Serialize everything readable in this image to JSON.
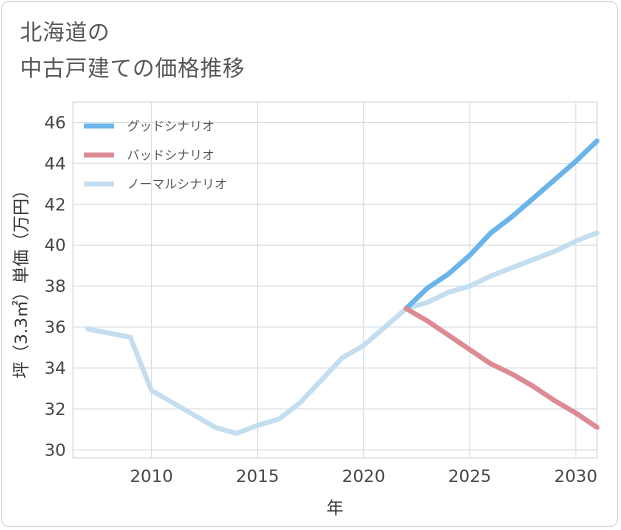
{
  "title_lines": [
    "北海道の",
    "中古戸建ての価格推移"
  ],
  "chart_data": {
    "type": "line",
    "xlabel": "年",
    "ylabel": "坪（3.3㎡）単価（万円）",
    "xlim": [
      2006.3,
      2031
    ],
    "ylim": [
      29.6,
      47
    ],
    "x_ticks": [
      2010,
      2015,
      2020,
      2025,
      2030
    ],
    "y_ticks": [
      30,
      32,
      34,
      36,
      38,
      40,
      42,
      44,
      46
    ],
    "grid": true,
    "legend_position": "top-left",
    "series": [
      {
        "name": "グッドシナリオ",
        "color": "#6ab4ea",
        "x": [
          2022,
          2023,
          2024,
          2025,
          2026,
          2027,
          2028,
          2029,
          2030,
          2031
        ],
        "y": [
          36.9,
          37.9,
          38.6,
          39.5,
          40.6,
          41.4,
          42.3,
          43.2,
          44.1,
          45.1
        ]
      },
      {
        "name": "バッドシナリオ",
        "color": "#dc8b94",
        "x": [
          2022,
          2023,
          2024,
          2025,
          2026,
          2027,
          2028,
          2029,
          2030,
          2031
        ],
        "y": [
          36.9,
          36.3,
          35.6,
          34.9,
          34.2,
          33.7,
          33.1,
          32.4,
          31.8,
          31.1
        ]
      },
      {
        "name": "ノーマルシナリオ",
        "color": "#c4def0",
        "x": [
          2007,
          2009,
          2010,
          2012,
          2013,
          2014,
          2015,
          2016,
          2017,
          2018,
          2019,
          2020,
          2021,
          2022,
          2023,
          2024,
          2025,
          2026,
          2027,
          2028,
          2029,
          2030,
          2031
        ],
        "y": [
          35.9,
          35.5,
          32.9,
          31.7,
          31.1,
          30.8,
          31.2,
          31.5,
          32.3,
          33.4,
          34.5,
          35.1,
          36,
          36.9,
          37.2,
          37.7,
          38,
          38.5,
          38.9,
          39.3,
          39.7,
          40.2,
          40.6
        ]
      }
    ]
  }
}
